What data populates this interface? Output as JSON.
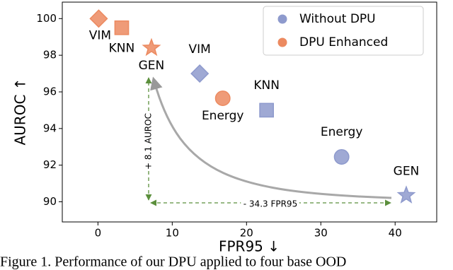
{
  "chart_data": {
    "type": "scatter",
    "xlabel": "FPR95 ↓",
    "ylabel": "AUROC ↑",
    "xlim": [
      -4.8,
      45.6
    ],
    "ylim": [
      88.9,
      100.9
    ],
    "xticks": [
      0,
      10,
      20,
      30,
      40
    ],
    "yticks": [
      90,
      92,
      94,
      96,
      98,
      100
    ],
    "legend": "upper right",
    "series": [
      {
        "name": "Without DPU",
        "color": "#8e9acd",
        "markers": [
          "diamond",
          "square",
          "circle",
          "star"
        ],
        "labels": [
          "VIM",
          "KNN",
          "Energy",
          "GEN"
        ],
        "x": [
          13.7,
          22.7,
          32.8,
          41.5
        ],
        "values": [
          97.0,
          95.0,
          92.45,
          90.35
        ]
      },
      {
        "name": "DPU Enhanced",
        "color": "#ec8a60",
        "markers": [
          "diamond",
          "square",
          "circle",
          "star"
        ],
        "labels": [
          "VIM",
          "KNN",
          "Energy",
          "GEN"
        ],
        "x": [
          0.1,
          3.2,
          16.8,
          7.2
        ],
        "values": [
          100.0,
          99.5,
          95.65,
          98.4
        ]
      }
    ],
    "annotations": [
      "+ 8.1 AUROC",
      "- 34.3 FPR95"
    ],
    "caption": "Figure 1.  Performance of our DPU applied to four base OOD"
  }
}
